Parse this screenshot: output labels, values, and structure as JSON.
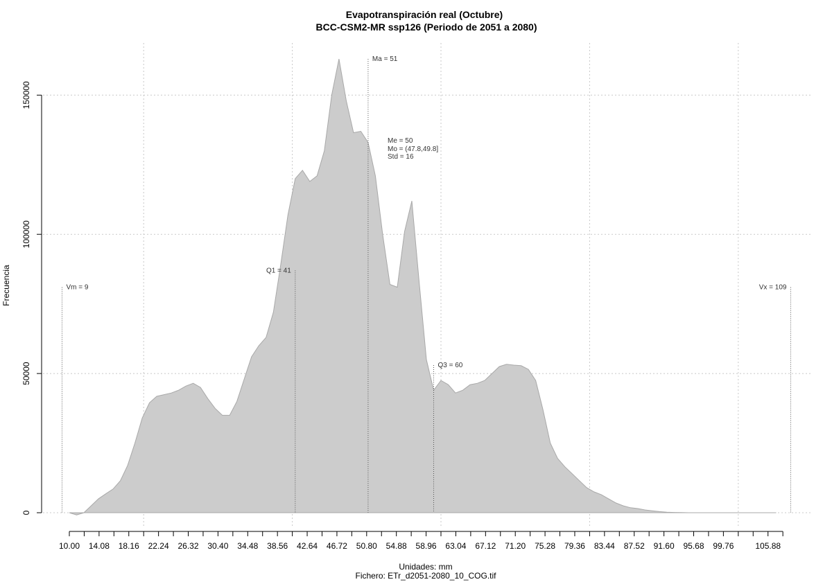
{
  "chart_data": {
    "type": "area",
    "title": "Evapotranspiración real (Octubre)",
    "subtitle": "BCC-CSM2-MR ssp126 (Periodo de 2051 a 2080)",
    "xlabel": "Unidades: mm",
    "file_caption": "Fichero: ETr_d2051-2080_10_COG.tif",
    "ylabel": "Frecuencia",
    "xlim": [
      10.0,
      107.92
    ],
    "ylim": [
      0,
      160000
    ],
    "x_ticks": [
      "10.00",
      "14.08",
      "18.16",
      "22.24",
      "26.32",
      "30.40",
      "34.48",
      "38.56",
      "42.64",
      "46.72",
      "50.80",
      "54.88",
      "58.96",
      "63.04",
      "67.12",
      "71.20",
      "75.28",
      "79.36",
      "83.44",
      "87.52",
      "91.60",
      "95.68",
      "99.76",
      "105.88"
    ],
    "x_tick_positions": [
      10.0,
      14.08,
      18.16,
      22.24,
      26.32,
      30.4,
      34.48,
      38.56,
      42.64,
      46.72,
      50.8,
      54.88,
      58.96,
      63.04,
      67.12,
      71.2,
      75.28,
      79.36,
      83.44,
      87.52,
      91.6,
      95.68,
      99.76,
      105.88
    ],
    "minor_tick_positions": [
      12.04,
      16.12,
      20.2,
      24.28,
      28.36,
      32.44,
      36.52,
      40.6,
      44.68,
      48.76,
      52.84,
      56.92,
      61.0,
      65.08,
      69.16,
      73.24,
      77.32,
      81.4,
      85.48,
      89.56,
      93.64,
      97.72,
      101.8,
      103.84,
      107.92
    ],
    "y_ticks": [
      0,
      50000,
      100000,
      150000
    ],
    "y_tick_labels": [
      "0",
      "50000",
      "100000",
      "150000"
    ],
    "x_grid": [
      20.2,
      40.6,
      61.0,
      81.4,
      101.8
    ],
    "grid": true,
    "series": [
      {
        "x": [
          10.0,
          11.0,
          12.0,
          13.0,
          14.0,
          15.0,
          16.0,
          17.0,
          18.0,
          19.0,
          20.0,
          21.0,
          22.0,
          23.0,
          24.0,
          25.0,
          26.0,
          27.0,
          28.0,
          29.0,
          30.0,
          31.0,
          32.0,
          33.0,
          34.0,
          35.0,
          36.0,
          37.0,
          38.0,
          39.0,
          40.0,
          41.0,
          42.0,
          43.0,
          44.0,
          45.0,
          46.0,
          47.0,
          48.0,
          49.0,
          50.0,
          51.0,
          52.0,
          53.0,
          54.0,
          55.0,
          56.0,
          57.0,
          58.0,
          59.0,
          60.0,
          61.0,
          62.0,
          63.0,
          64.0,
          65.0,
          66.0,
          67.0,
          68.0,
          69.0,
          70.0,
          71.0,
          72.0,
          73.0,
          74.0,
          75.0,
          76.0,
          77.0,
          78.0,
          79.0,
          80.0,
          81.0,
          82.0,
          83.0,
          84.0,
          85.0,
          86.0,
          87.0,
          88.0,
          89.0,
          90.0,
          91.0,
          92.0,
          93.0,
          94.0,
          95.0,
          96.0,
          97.0,
          98.0,
          99.0,
          100.0,
          101.0,
          102.0,
          103.0,
          104.0,
          105.0,
          106.0,
          107.0
        ],
        "y": [
          0,
          -800,
          0,
          2500,
          5000,
          6800,
          8500,
          11500,
          17000,
          25000,
          34000,
          39500,
          41800,
          42400,
          43000,
          44000,
          45500,
          46500,
          45000,
          41000,
          37500,
          35000,
          35000,
          40000,
          48000,
          56000,
          60000,
          63000,
          72000,
          89000,
          107000,
          120000,
          123000,
          119000,
          121000,
          130000,
          150000,
          163000,
          148000,
          136500,
          137000,
          133000,
          121000,
          100000,
          82000,
          81000,
          101000,
          112000,
          83000,
          55000,
          44000,
          47500,
          46000,
          43000,
          44000,
          46000,
          46500,
          47500,
          50000,
          52500,
          53300,
          53000,
          52800,
          51500,
          47500,
          37000,
          25000,
          19500,
          16500,
          14000,
          11500,
          9000,
          7500,
          6500,
          5000,
          3500,
          2500,
          1800,
          1500,
          1000,
          700,
          400,
          200,
          100,
          50,
          0,
          0,
          0,
          0,
          0,
          0,
          0,
          0,
          0,
          0,
          0,
          0,
          0
        ]
      }
    ],
    "annotations": [
      {
        "label": "Vm = 9",
        "x": 9.0,
        "y_top": 81000,
        "side": "right"
      },
      {
        "label": "Q1 = 41",
        "x": 41.0,
        "y_top": 87000,
        "side": "left"
      },
      {
        "label": "Ma = 51",
        "x": 51.0,
        "y_top": 163000,
        "side": "right"
      },
      {
        "label": "Q3 = 60",
        "x": 60.0,
        "y_top": 53000,
        "side": "right"
      },
      {
        "label": "Vx = 109",
        "x": 109.0,
        "y_top": 81000,
        "side": "left"
      }
    ],
    "stats_text": [
      "Me = 50",
      "Mo = (47.8,49.8]",
      "Std = 16"
    ]
  }
}
